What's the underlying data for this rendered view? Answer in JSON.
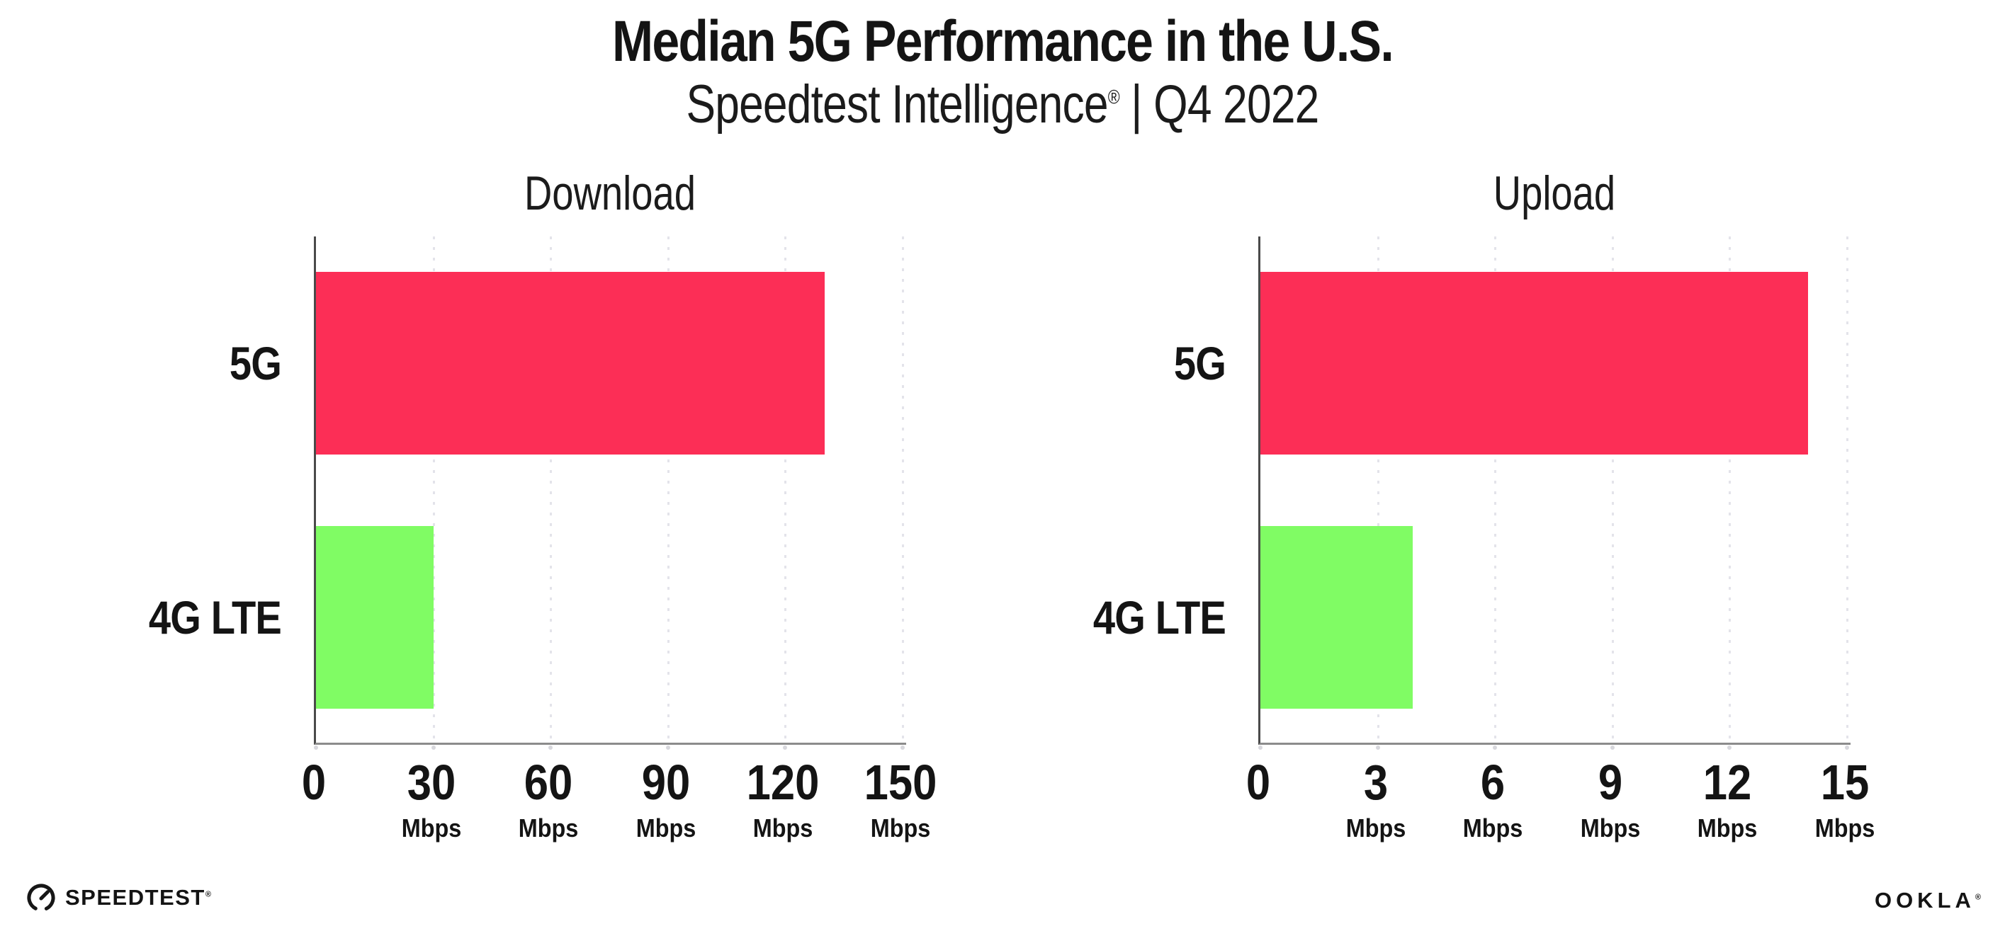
{
  "page": {
    "title": "Median 5G Performance in the U.S.",
    "subtitle_brand": "Speedtest Intelligence",
    "subtitle_reg": "®",
    "subtitle_rest": " | Q4 2022"
  },
  "footer": {
    "speedtest_label": "SPEEDTEST",
    "speedtest_reg": "®",
    "ookla_label": "OOKLA",
    "ookla_reg": "®"
  },
  "colors": {
    "bar_5g": "#fc2e56",
    "bar_4g_lte": "#80fc64",
    "gridline": "#e3e3ea",
    "x_axis_line": "#8c8c8c",
    "y_axis_line": "#4a4a4a",
    "text": "#141414"
  },
  "chart_data": [
    {
      "type": "bar",
      "orientation": "horizontal",
      "title": "Download",
      "categories": [
        "5G",
        "4G LTE"
      ],
      "values": [
        130,
        30
      ],
      "unit": "Mbps",
      "xlim": [
        0,
        150
      ],
      "ticks": [
        0,
        30,
        60,
        90,
        120,
        150
      ],
      "bar_colors": [
        "bar_5g",
        "bar_4g_lte"
      ],
      "grid": "dotted-vertical",
      "legend": "none"
    },
    {
      "type": "bar",
      "orientation": "horizontal",
      "title": "Upload",
      "categories": [
        "5G",
        "4G LTE"
      ],
      "values": [
        14,
        3.9
      ],
      "unit": "Mbps",
      "xlim": [
        0,
        15
      ],
      "ticks": [
        0,
        3,
        6,
        9,
        12,
        15
      ],
      "bar_colors": [
        "bar_5g",
        "bar_4g_lte"
      ],
      "grid": "dotted-vertical",
      "legend": "none"
    }
  ]
}
